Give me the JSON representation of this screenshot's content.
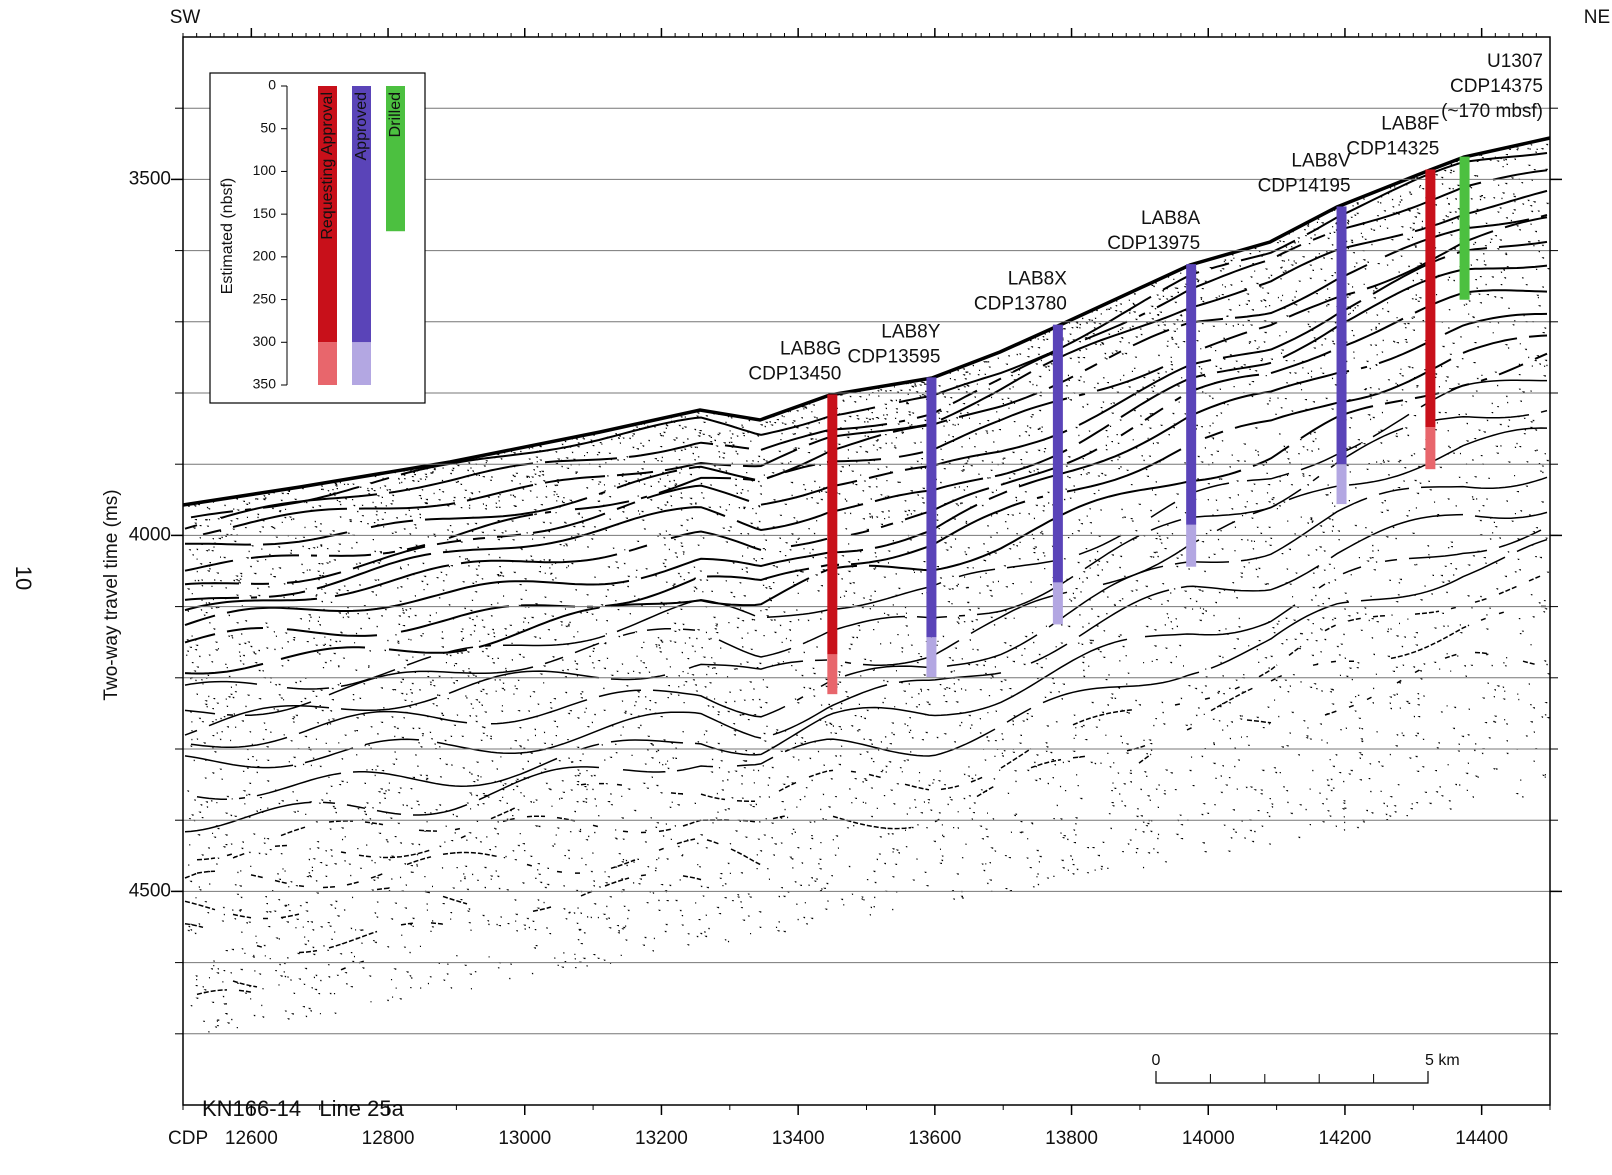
{
  "chart_data": {
    "type": "seismic-profile",
    "direction_left": "SW",
    "direction_right": "NE",
    "page_number": "10",
    "ylabel": "Two-way travel time (ms)",
    "xlabel": "CDP",
    "caption": "KN166-14   Line 25a",
    "xlim": [
      12500,
      14500
    ],
    "xticks": [
      12600,
      12800,
      13000,
      13200,
      13400,
      13600,
      13800,
      14000,
      14200,
      14400
    ],
    "ylim": [
      3300,
      4800
    ],
    "yticks": [
      3500,
      4000,
      4500
    ],
    "ygrid": [
      3400,
      3500,
      3600,
      3700,
      3800,
      3900,
      4000,
      4100,
      4200,
      4300,
      4400,
      4500,
      4600,
      4700
    ],
    "sites": [
      {
        "name": "LAB8G",
        "cdp_label": "CDP13450",
        "cdp": 13450,
        "color": "#c8101a",
        "extension_color": "#e8666c",
        "top_twt": 3802,
        "base_twt": 4167,
        "extension_base_twt": 4223
      },
      {
        "name": "LAB8Y",
        "cdp_label": "CDP13595",
        "cdp": 13595,
        "color": "#5a44b8",
        "extension_color": "#b3a7e2",
        "top_twt": 3778,
        "base_twt": 4143,
        "extension_base_twt": 4199
      },
      {
        "name": "LAB8X",
        "cdp_label": "CDP13780",
        "cdp": 13780,
        "color": "#5a44b8",
        "extension_color": "#b3a7e2",
        "top_twt": 3704,
        "base_twt": 4066,
        "extension_base_twt": 4125
      },
      {
        "name": "LAB8A",
        "cdp_label": "CDP13975",
        "cdp": 13975,
        "color": "#5a44b8",
        "extension_color": "#b3a7e2",
        "top_twt": 3619,
        "base_twt": 3985,
        "extension_base_twt": 4044
      },
      {
        "name": "LAB8V",
        "cdp_label": "CDP14195",
        "cdp": 14195,
        "color": "#5a44b8",
        "extension_color": "#b3a7e2",
        "top_twt": 3538,
        "base_twt": 3900,
        "extension_base_twt": 3956
      },
      {
        "name": "LAB8F",
        "cdp_label": "CDP14325",
        "cdp": 14325,
        "color": "#c8101a",
        "extension_color": "#e8666c",
        "top_twt": 3486,
        "base_twt": 3848,
        "extension_base_twt": 3907
      },
      {
        "name": "U1307",
        "cdp_label": "CDP14375",
        "note": "(~170 mbsf)",
        "cdp": 14375,
        "color": "#4cc040",
        "top_twt": 3468,
        "base_twt": 3669
      }
    ],
    "legend": {
      "ylabel": "Estimated (nbsf)",
      "ylim": [
        0,
        350
      ],
      "yticks": [
        0,
        50,
        100,
        150,
        200,
        250,
        300,
        350
      ],
      "items": [
        {
          "name": "Requesting Approval",
          "color": "#c8101a",
          "extension_color": "#e8666c",
          "depth": 300,
          "extension_depth": 350
        },
        {
          "name": "Approved",
          "color": "#5a44b8",
          "extension_color": "#b3a7e2",
          "depth": 300,
          "extension_depth": 350
        },
        {
          "name": "Drilled",
          "color": "#4cc040",
          "depth": 170
        }
      ]
    },
    "scale_bar": {
      "start_label": "0",
      "end_label": "5 km"
    }
  }
}
